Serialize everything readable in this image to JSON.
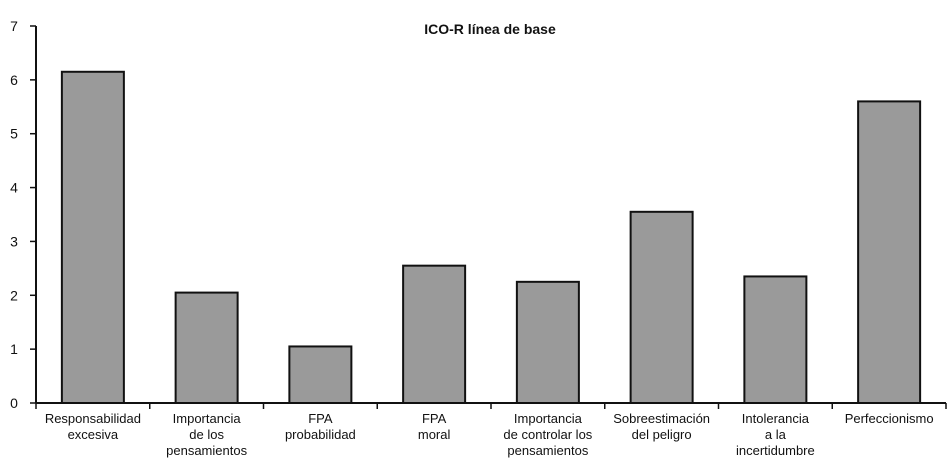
{
  "chart_data": {
    "type": "bar",
    "title": "ICO-R línea de base",
    "xlabel": "",
    "ylabel": "",
    "ylim": [
      0,
      7
    ],
    "yticks": [
      0,
      1,
      2,
      3,
      4,
      5,
      6,
      7
    ],
    "grid": false,
    "categories": [
      [
        "Responsabilidad",
        "excesiva"
      ],
      [
        "Importancia",
        "de los",
        "pensamientos"
      ],
      [
        "FPA",
        "probabilidad"
      ],
      [
        "FPA",
        "moral"
      ],
      [
        "Importancia",
        "de controlar los",
        "pensamientos"
      ],
      [
        "Sobreestimación",
        "del peligro"
      ],
      [
        "Intolerancia",
        "a la",
        "incertidumbre"
      ],
      [
        "Perfeccionismo"
      ]
    ],
    "values": [
      6.15,
      2.05,
      1.05,
      2.55,
      2.25,
      3.55,
      2.35,
      5.6
    ],
    "colors": {
      "bar": "#9a9a9a",
      "edge": "#111111",
      "axis": "#111111"
    }
  }
}
